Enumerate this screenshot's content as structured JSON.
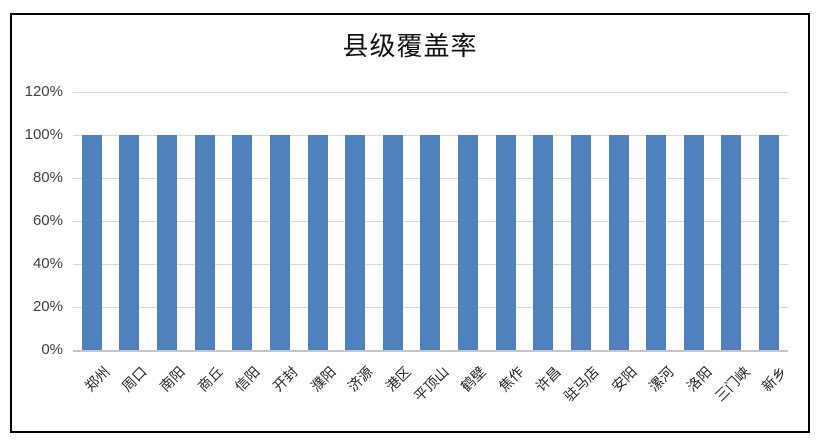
{
  "chart": {
    "title": "县级覆盖率",
    "colors": {
      "bar": "#4F81BD",
      "gridline": "#D9D9D9",
      "axis_line": "#C6C6C6",
      "frame_border": "#000000",
      "tick_label": "#404040",
      "category_label": "#262626",
      "title": "#111111",
      "background": "#FFFFFF"
    }
  },
  "chart_data": {
    "type": "bar",
    "title": "县级覆盖率",
    "categories": [
      "郑州",
      "周口",
      "南阳",
      "商丘",
      "信阳",
      "开封",
      "濮阳",
      "济源",
      "港区",
      "平顶山",
      "鹤壁",
      "焦作",
      "许昌",
      "驻马店",
      "安阳",
      "漯河",
      "洛阳",
      "三门峡",
      "新乡"
    ],
    "values": [
      100,
      100,
      100,
      100,
      100,
      100,
      100,
      100,
      100,
      100,
      100,
      100,
      100,
      100,
      100,
      100,
      100,
      100,
      100
    ],
    "xlabel": "",
    "ylabel": "",
    "ylim": [
      0,
      120
    ],
    "ytick_interval": 20,
    "ytick_labels": [
      "0%",
      "20%",
      "40%",
      "60%",
      "80%",
      "100%",
      "120%"
    ],
    "grid": true,
    "legend": false,
    "category_label_rotation_deg": 45
  }
}
